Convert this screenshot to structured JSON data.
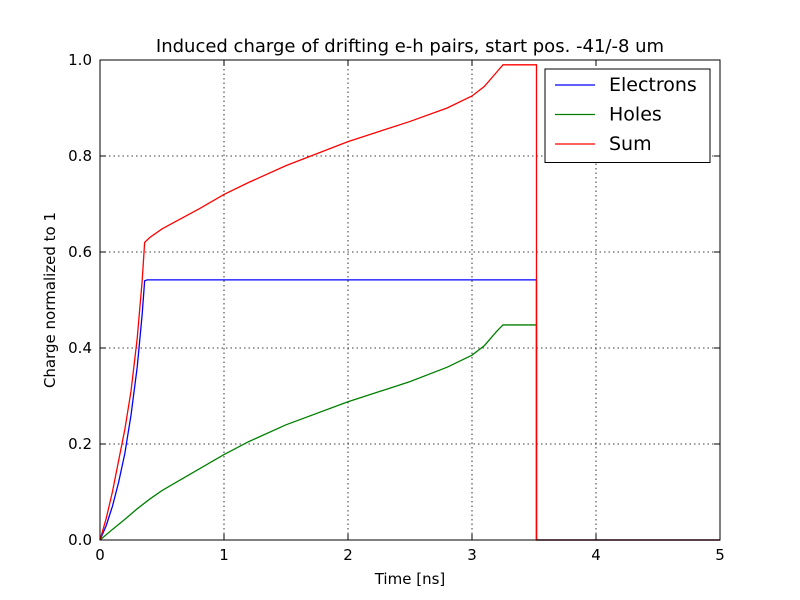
{
  "chart_data": {
    "type": "line",
    "title": "Induced charge of drifting e-h pairs, start pos. -41/-8 um",
    "xlabel": "Time [ns]",
    "ylabel": "Charge normalized to 1",
    "xlim": [
      0,
      5
    ],
    "ylim": [
      0,
      1.0
    ],
    "xticks": [
      0,
      1,
      2,
      3,
      4,
      5
    ],
    "xtick_labels": [
      "0",
      "1",
      "2",
      "3",
      "4",
      "5"
    ],
    "yticks": [
      0.0,
      0.2,
      0.4,
      0.6,
      0.8,
      1.0
    ],
    "ytick_labels": [
      "0.0",
      "0.2",
      "0.4",
      "0.6",
      "0.8",
      "1.0"
    ],
    "grid": true,
    "legend_position": "top-right",
    "series": [
      {
        "name": "Electrons",
        "color": "#0000ff",
        "x": [
          0,
          0.05,
          0.1,
          0.15,
          0.2,
          0.25,
          0.3,
          0.34,
          0.36,
          0.38,
          1.0,
          2.0,
          3.0,
          3.52,
          3.52,
          3.53,
          5.0
        ],
        "y": [
          0,
          0.03,
          0.07,
          0.12,
          0.18,
          0.26,
          0.36,
          0.47,
          0.54,
          0.542,
          0.542,
          0.542,
          0.542,
          0.542,
          0.0,
          0.0,
          0.0
        ]
      },
      {
        "name": "Holes",
        "color": "#008000",
        "x": [
          0,
          0.1,
          0.2,
          0.3,
          0.4,
          0.5,
          0.6,
          0.8,
          1.0,
          1.2,
          1.5,
          2.0,
          2.5,
          2.8,
          3.0,
          3.1,
          3.2,
          3.25,
          3.52,
          3.52,
          3.53,
          5.0
        ],
        "y": [
          0,
          0.022,
          0.043,
          0.065,
          0.085,
          0.103,
          0.118,
          0.148,
          0.178,
          0.205,
          0.24,
          0.288,
          0.33,
          0.36,
          0.385,
          0.405,
          0.435,
          0.448,
          0.448,
          0.0,
          0.0,
          0.0
        ]
      },
      {
        "name": "Sum",
        "color": "#ff0000",
        "x": [
          0,
          0.05,
          0.1,
          0.15,
          0.2,
          0.25,
          0.3,
          0.34,
          0.36,
          0.4,
          0.5,
          0.6,
          0.8,
          1.0,
          1.2,
          1.5,
          2.0,
          2.5,
          2.8,
          3.0,
          3.1,
          3.2,
          3.25,
          3.52,
          3.52,
          3.53,
          5.0
        ],
        "y": [
          0,
          0.045,
          0.1,
          0.165,
          0.23,
          0.31,
          0.42,
          0.54,
          0.62,
          0.63,
          0.648,
          0.662,
          0.69,
          0.72,
          0.745,
          0.78,
          0.83,
          0.872,
          0.9,
          0.925,
          0.945,
          0.975,
          0.99,
          0.99,
          0.0,
          0.0,
          0.0
        ]
      }
    ]
  }
}
